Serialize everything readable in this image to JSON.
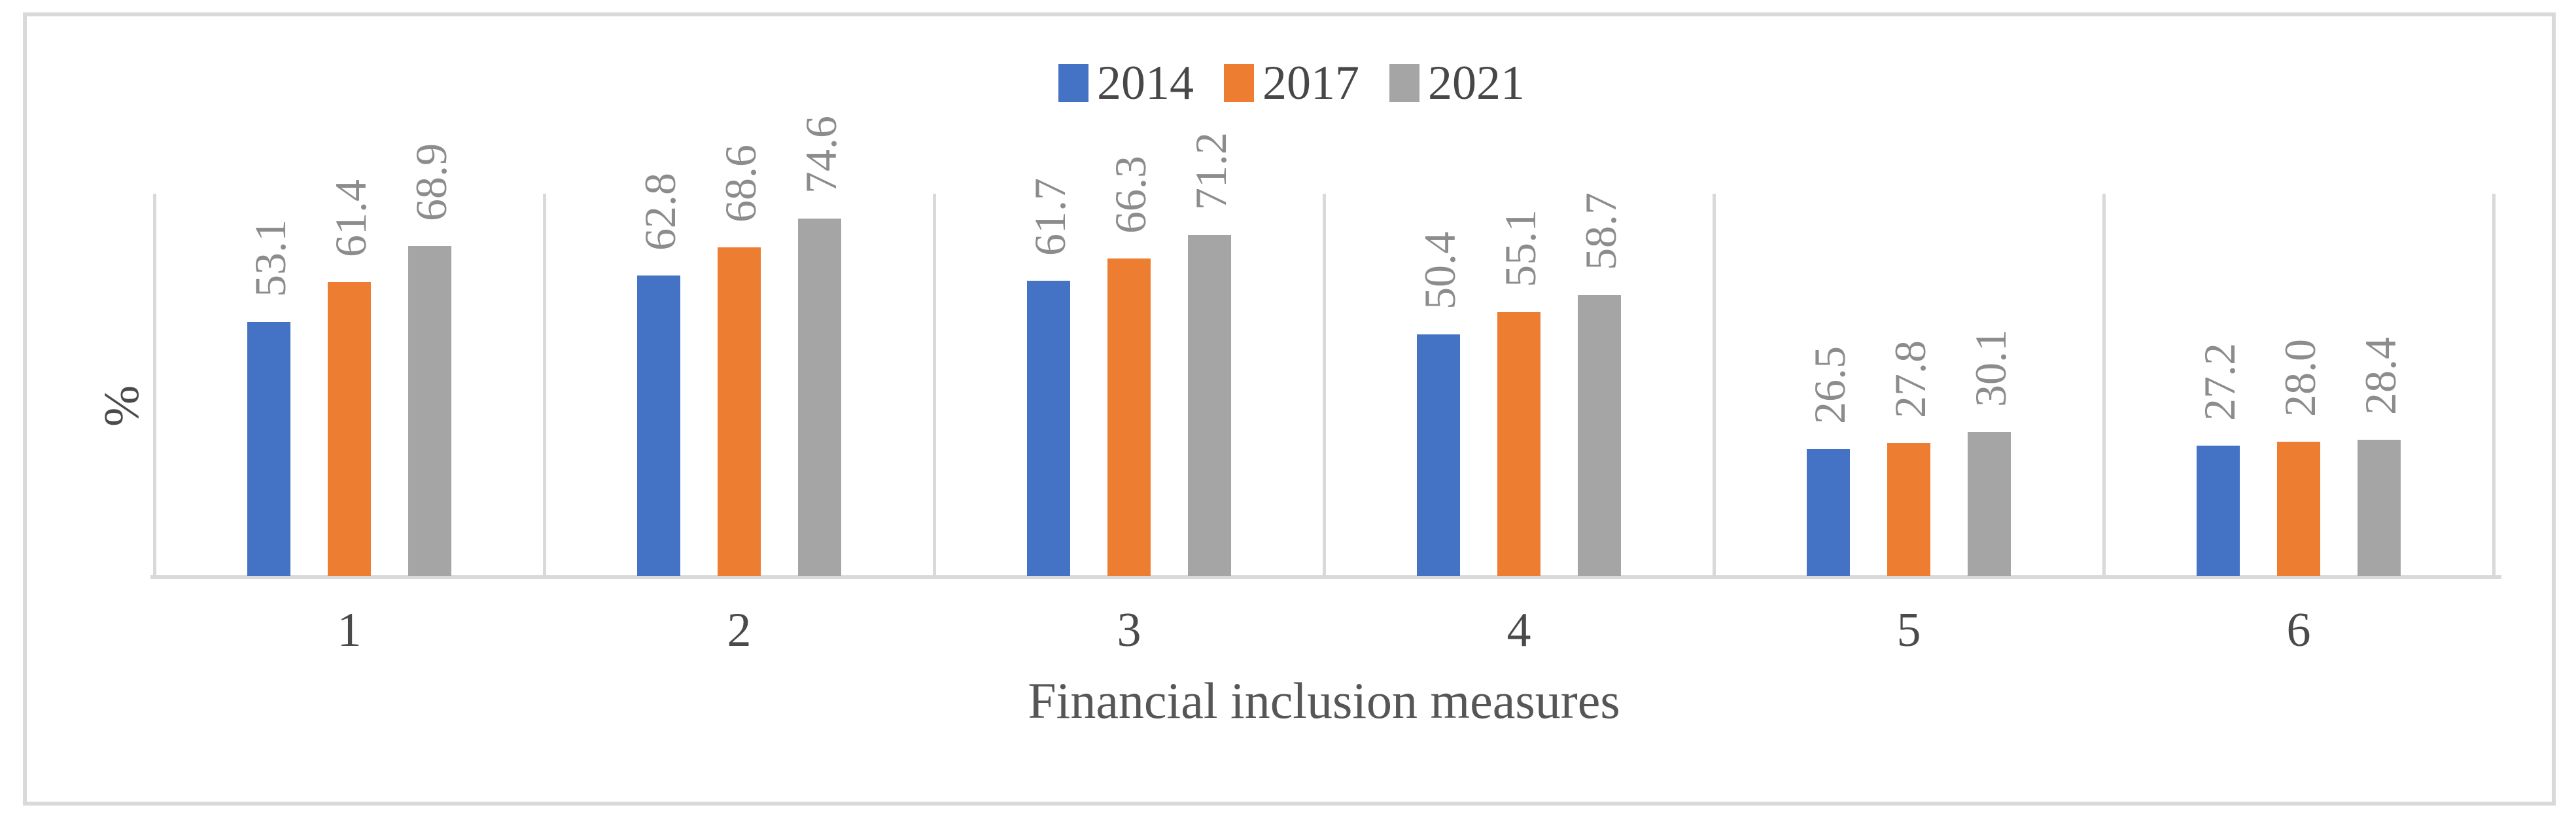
{
  "chart_data": {
    "type": "bar",
    "title": "",
    "xlabel": "Financial inclusion measures",
    "ylabel": "%",
    "categories": [
      "1",
      "2",
      "3",
      "4",
      "5",
      "6"
    ],
    "series": [
      {
        "name": "2014",
        "color": "#4472C4",
        "values": [
          53.1,
          62.8,
          61.7,
          50.4,
          26.5,
          27.2
        ]
      },
      {
        "name": "2017",
        "color": "#ED7D31",
        "values": [
          61.4,
          68.6,
          66.3,
          55.1,
          27.8,
          28.0
        ]
      },
      {
        "name": "2021",
        "color": "#A5A5A5",
        "values": [
          68.9,
          74.6,
          71.2,
          58.7,
          30.1,
          28.4
        ]
      }
    ],
    "ylim": [
      0,
      80
    ],
    "value_label_decimals": 1,
    "legend_position": "top-center",
    "grid": "vertical-category-dividers",
    "divider_color": "#D9D9D9",
    "value_label_color": "#8C8C8C",
    "axis_text_color": "#4A4A4A"
  }
}
